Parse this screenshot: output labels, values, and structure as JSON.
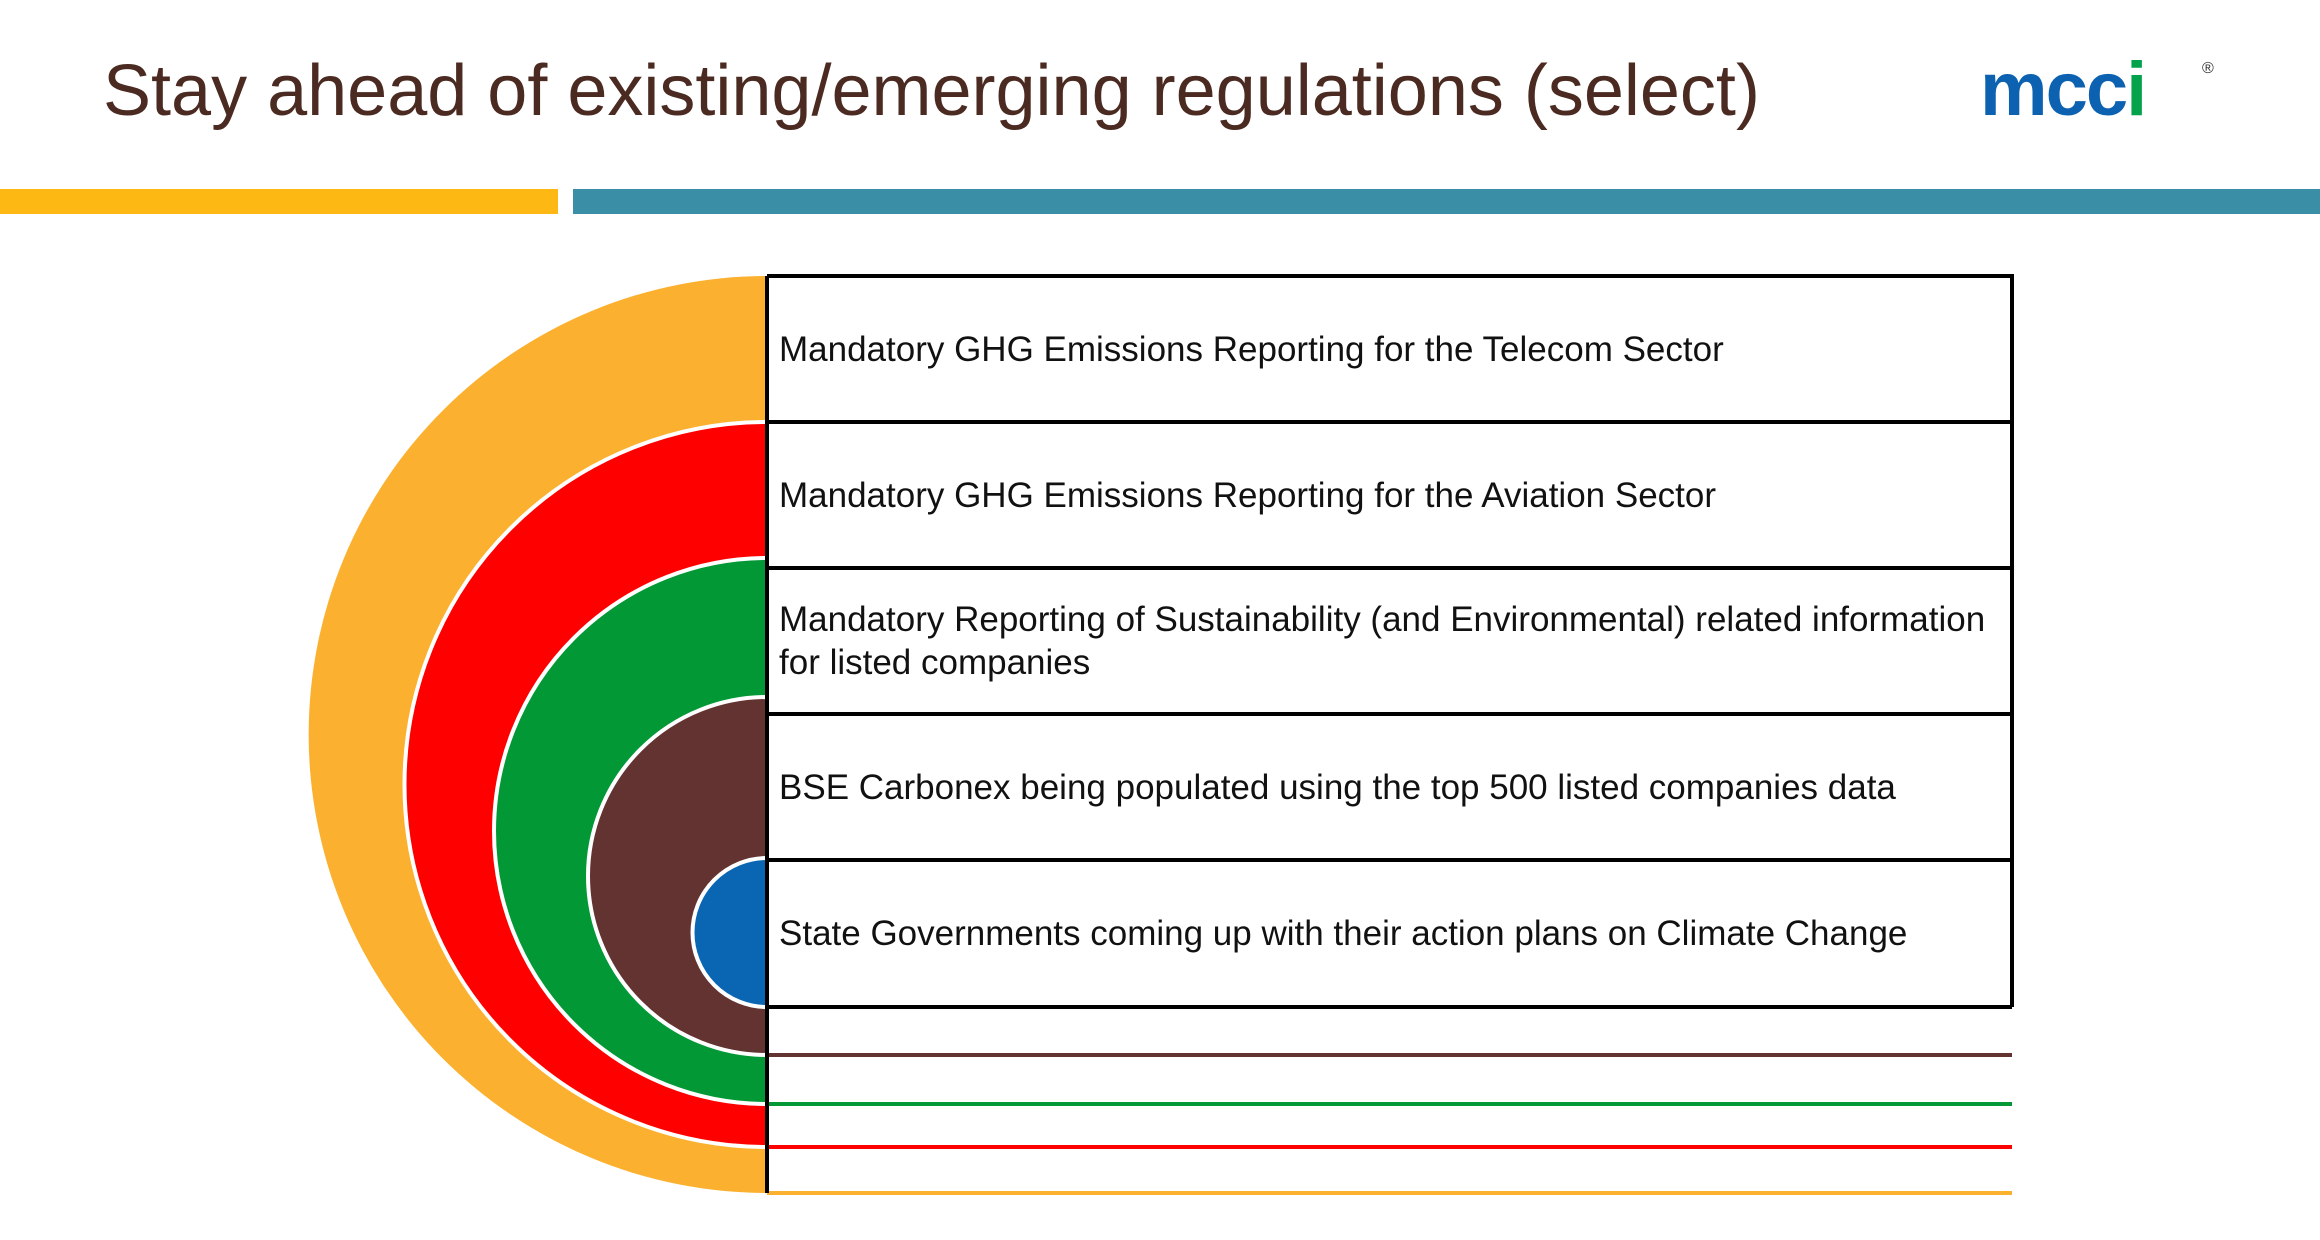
{
  "title": "Stay ahead of existing/emerging regulations (select)",
  "logo": {
    "text": "mcci",
    "mark": "®",
    "colors": {
      "primary": "#0c62b0",
      "accent": "#04a24a"
    }
  },
  "accent_bars": {
    "left_color": "#fdb813",
    "right_color": "#3a8ea5"
  },
  "items": [
    {
      "label": "Mandatory GHG Emissions Reporting for the Telecom Sector",
      "color": "#fbb12f"
    },
    {
      "label": "Mandatory GHG Emissions Reporting for the Aviation Sector",
      "color": "#ff0000"
    },
    {
      "label": "Mandatory Reporting of Sustainability (and Environmental) related information for listed companies",
      "color": "#029836"
    },
    {
      "label": "BSE Carbonex being populated using the top 500 listed companies data",
      "color": "#633332"
    },
    {
      "label": "State Governments coming up with their action plans on Climate Change",
      "color": "#0a66b3"
    }
  ]
}
